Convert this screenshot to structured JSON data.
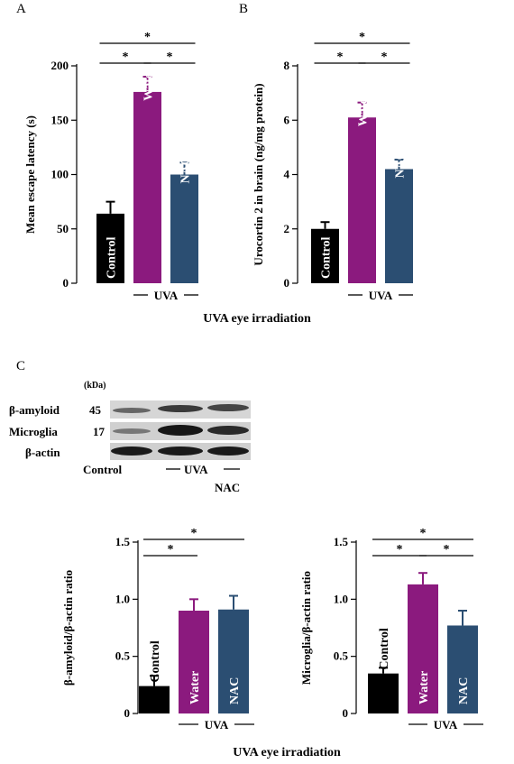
{
  "panels": {
    "a": "A",
    "b": "B",
    "c": "C"
  },
  "x_group_label": "UVA eye irradiation",
  "uva_label": "UVA",
  "colors": {
    "control": "#000000",
    "water": "#8b1a7e",
    "nac": "#2b4e72"
  },
  "blot": {
    "kda_label": "(kDa)",
    "rows": [
      {
        "name": "β-amyloid",
        "kda": "45"
      },
      {
        "name": "Microglia",
        "kda": "17"
      },
      {
        "name": "β-actin",
        "kda": ""
      }
    ],
    "lane_labels": {
      "control": "Control",
      "uva": "UVA",
      "nac": "NAC"
    }
  },
  "chart_data": [
    {
      "type": "bar",
      "panel": "A",
      "categories": [
        "Control",
        "Water",
        "NAC"
      ],
      "values": [
        64,
        176,
        100
      ],
      "errors": [
        11,
        14,
        11
      ],
      "ylabel": "Mean escape latency (s)",
      "ylim": [
        0,
        200
      ],
      "yticks": [
        "0",
        "50",
        "100",
        "150",
        "200"
      ],
      "significance": [
        "*",
        "*",
        "*"
      ]
    },
    {
      "type": "bar",
      "panel": "B",
      "categories": [
        "Control",
        "Water",
        "NAC"
      ],
      "values": [
        2.0,
        6.1,
        4.2
      ],
      "errors": [
        0.25,
        0.55,
        0.35
      ],
      "ylabel": "Urocortin 2 in brain  (ng/mg protein)",
      "ylim": [
        0,
        8
      ],
      "yticks": [
        "0",
        "2",
        "4",
        "6",
        "8"
      ],
      "significance": [
        "*",
        "*",
        "*"
      ]
    },
    {
      "type": "bar",
      "panel": "C1",
      "categories": [
        "Control",
        "Water",
        "NAC"
      ],
      "values": [
        0.24,
        0.9,
        0.91
      ],
      "errors": [
        0.09,
        0.1,
        0.12
      ],
      "ylabel": "β-amyloid/β-actin  ratio",
      "ylim": [
        0,
        1.5
      ],
      "yticks": [
        "0",
        "0.5",
        "1.0",
        "1.5"
      ],
      "significance": [
        "*",
        "*"
      ]
    },
    {
      "type": "bar",
      "panel": "C2",
      "categories": [
        "Control",
        "Water",
        "NAC"
      ],
      "values": [
        0.35,
        1.13,
        0.77
      ],
      "errors": [
        0.05,
        0.1,
        0.13
      ],
      "ylabel": "Microglia/β-actin  ratio",
      "ylim": [
        0,
        1.5
      ],
      "yticks": [
        "0",
        "0.5",
        "1.0",
        "1.5"
      ],
      "significance": [
        "*",
        "*",
        "*"
      ]
    }
  ]
}
